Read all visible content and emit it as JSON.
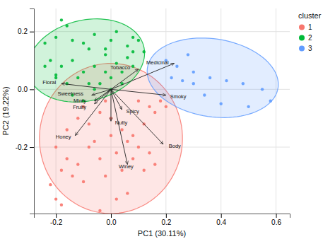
{
  "chart_data": {
    "type": "scatter",
    "xlabel": "PC1 (30.11%)",
    "ylabel": "PC2 (19.22%)",
    "xlim": [
      -0.28,
      0.65
    ],
    "ylim": [
      -0.43,
      0.28
    ],
    "xticks": [
      -0.2,
      {
        "value": 0.0,
        "label": "0.0"
      },
      0.2,
      0.4,
      0.6
    ],
    "yticks": [
      -0.2,
      {
        "value": 0.0,
        "label": "0.0"
      },
      0.2
    ],
    "grid": true,
    "legend": "right",
    "legend_title": "cluster",
    "series": [
      {
        "name": "1",
        "color": "#F8766D",
        "x": [
          -0.22,
          -0.2,
          -0.18,
          -0.16,
          -0.14,
          -0.12,
          -0.1,
          -0.08,
          -0.06,
          -0.04,
          -0.02,
          0.0,
          0.02,
          0.04,
          0.06,
          0.08,
          0.1,
          0.12,
          0.14,
          0.16,
          -0.2,
          -0.16,
          -0.12,
          -0.08,
          -0.04,
          0.0,
          0.04,
          0.08,
          0.12,
          0.16,
          -0.18,
          -0.04,
          0.02,
          0.06,
          -0.1,
          0.14,
          0.18,
          0.1,
          -0.02,
          0.2
        ],
        "values": [
          -0.33,
          -0.38,
          -0.28,
          -0.24,
          -0.3,
          -0.26,
          -0.32,
          -0.2,
          -0.18,
          -0.24,
          -0.3,
          -0.16,
          -0.22,
          -0.28,
          -0.18,
          -0.24,
          -0.2,
          -0.28,
          -0.22,
          -0.26,
          -0.2,
          -0.14,
          -0.1,
          -0.12,
          -0.08,
          -0.1,
          -0.14,
          -0.16,
          -0.12,
          -0.08,
          -0.4,
          -0.42,
          -0.38,
          -0.36,
          -0.06,
          -0.06,
          -0.04,
          -0.04,
          -0.04,
          -0.06
        ],
        "ellipse": {
          "cx": 0.0,
          "cy": -0.17,
          "width": 0.52,
          "height": 0.52,
          "angle": -20
        }
      },
      {
        "name": "2",
        "color": "#00BA38",
        "x": [
          -0.24,
          -0.2,
          -0.16,
          -0.14,
          -0.1,
          -0.08,
          -0.06,
          -0.02,
          0.0,
          0.02,
          0.06,
          0.08,
          -0.22,
          -0.18,
          -0.14,
          -0.1,
          -0.06,
          -0.02,
          0.02,
          0.06,
          -0.2,
          -0.16,
          -0.12,
          -0.08,
          -0.04,
          0.0,
          0.04,
          0.08,
          -0.24,
          -0.2,
          -0.14,
          -0.06,
          0.0,
          -0.1,
          0.04,
          0.08,
          -0.18,
          0.1,
          0.12,
          -0.02
        ],
        "values": [
          0.16,
          0.18,
          0.22,
          0.17,
          0.16,
          0.14,
          0.19,
          0.12,
          0.17,
          0.2,
          0.15,
          0.13,
          0.1,
          0.08,
          0.1,
          0.06,
          0.08,
          0.06,
          0.09,
          0.11,
          0.04,
          0.02,
          0.04,
          0.02,
          0.02,
          0.04,
          0.06,
          0.08,
          0.08,
          0.05,
          -0.02,
          0.0,
          0.0,
          -0.04,
          0.02,
          0.18,
          0.24,
          0.17,
          0.13,
          0.14
        ],
        "ellipse": {
          "cx": -0.09,
          "cy": 0.1,
          "width": 0.43,
          "height": 0.28,
          "angle": 12
        }
      },
      {
        "name": "3",
        "color": "#619CFF",
        "x": [
          0.2,
          0.24,
          0.28,
          0.3,
          0.36,
          0.42,
          0.48,
          0.55,
          0.22,
          0.26,
          0.34,
          0.4,
          0.5,
          0.58,
          0.3
        ],
        "values": [
          0.1,
          0.08,
          0.12,
          0.06,
          0.04,
          0.03,
          0.02,
          0.0,
          0.04,
          0.03,
          -0.02,
          -0.05,
          -0.06,
          -0.04,
          0.02
        ],
        "ellipse": {
          "cx": 0.37,
          "cy": 0.04,
          "width": 0.48,
          "height": 0.27,
          "angle": -8
        }
      }
    ],
    "arrows": [
      {
        "label": "Floral",
        "x": -0.18,
        "y": 0.02,
        "label_x": -0.2,
        "label_y": 0.025
      },
      {
        "label": "Sweetness",
        "x": -0.07,
        "y": -0.02,
        "label_x": -0.1,
        "label_y": -0.022
      },
      {
        "label": "Minty",
        "x": -0.06,
        "y": -0.04,
        "label_x": -0.09,
        "label_y": -0.042
      },
      {
        "label": "Fruity",
        "x": -0.06,
        "y": -0.05,
        "label_x": -0.09,
        "label_y": -0.053
      },
      {
        "label": "Tobacco",
        "x": 0.1,
        "y": 0.07,
        "label_x": 0.07,
        "label_y": 0.075
      },
      {
        "label": "Spicy",
        "x": 0.04,
        "y": -0.07,
        "label_x": 0.055,
        "label_y": -0.075
      },
      {
        "label": "Nutty",
        "x": 0.0,
        "y": -0.11,
        "label_x": 0.015,
        "label_y": -0.115
      },
      {
        "label": "Honey",
        "x": -0.13,
        "y": -0.16,
        "label_x": -0.145,
        "label_y": -0.165
      },
      {
        "label": "Winey",
        "x": 0.06,
        "y": -0.26,
        "label_x": 0.055,
        "label_y": -0.268
      },
      {
        "label": "Body",
        "x": 0.19,
        "y": -0.19,
        "label_x": 0.21,
        "label_y": -0.195
      },
      {
        "label": "Smoky",
        "x": 0.2,
        "y": -0.02,
        "label_x": 0.215,
        "label_y": -0.024
      },
      {
        "label": "Medicinal",
        "x": 0.23,
        "y": 0.09,
        "label_x": 0.21,
        "label_y": 0.093
      }
    ]
  }
}
